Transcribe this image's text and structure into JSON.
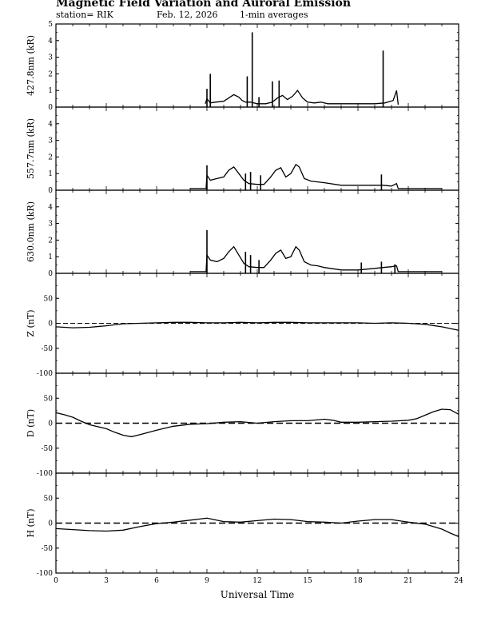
{
  "header": {
    "title": "Magnetic Field Variation and Auroral Emission",
    "station": "station= RIK",
    "date": "Feb. 12, 2026",
    "averaging": "1-min averages"
  },
  "chart_data": {
    "type": "line",
    "xlabel": "Universal Time",
    "xlim": [
      0,
      24
    ],
    "xticks": [
      "0",
      "3",
      "6",
      "9",
      "12",
      "15",
      "18",
      "21",
      "24"
    ],
    "panels": [
      {
        "ylabel": "427.8nm (kR)",
        "ylim": [
          0,
          5
        ],
        "yticks": [
          "0",
          "1",
          "2",
          "3",
          "4",
          "5"
        ],
        "series": [
          {
            "x": [
              8.9,
              9.0,
              9.2,
              9.5,
              10.0,
              10.3,
              10.6,
              10.9,
              11.1,
              11.3,
              11.6,
              12.0,
              12.5,
              12.9,
              13.2,
              13.5,
              13.8,
              14.1,
              14.4,
              14.7,
              15.0,
              15.4,
              15.8,
              16.2,
              17.0,
              18.0,
              19.0,
              19.6,
              20.1,
              20.3,
              20.4
            ],
            "y": [
              0.2,
              0.5,
              0.25,
              0.3,
              0.35,
              0.55,
              0.75,
              0.6,
              0.4,
              0.3,
              0.3,
              0.2,
              0.2,
              0.3,
              0.55,
              0.7,
              0.45,
              0.65,
              1.0,
              0.55,
              0.3,
              0.25,
              0.3,
              0.2,
              0.2,
              0.2,
              0.2,
              0.25,
              0.4,
              1.0,
              0.15
            ]
          }
        ],
        "spikes": [
          {
            "x": 9.0,
            "y": 1.1
          },
          {
            "x": 9.2,
            "y": 2.0
          },
          {
            "x": 11.4,
            "y": 1.85
          },
          {
            "x": 11.7,
            "y": 4.5
          },
          {
            "x": 12.1,
            "y": 0.6
          },
          {
            "x": 12.9,
            "y": 1.55
          },
          {
            "x": 13.3,
            "y": 1.6
          },
          {
            "x": 19.5,
            "y": 3.4
          }
        ]
      },
      {
        "ylabel": "557.7nm (kR)",
        "ylim": [
          0,
          5
        ],
        "yticks": [
          "0",
          "1",
          "2",
          "3",
          "4"
        ],
        "series": [
          {
            "x": [
              8.0,
              8.95,
              9.0,
              9.2,
              9.6,
              10.0,
              10.3,
              10.6,
              10.9,
              11.2,
              11.5,
              12.0,
              12.4,
              12.8,
              13.1,
              13.4,
              13.7,
              14.0,
              14.3,
              14.5,
              14.8,
              15.2,
              15.6,
              16.0,
              17.0,
              18.0,
              19.0,
              19.5,
              20.0,
              20.3,
              20.4,
              21.0,
              23.0
            ],
            "y": [
              0.1,
              0.1,
              0.9,
              0.6,
              0.7,
              0.8,
              1.2,
              1.4,
              1.0,
              0.6,
              0.4,
              0.35,
              0.35,
              0.8,
              1.2,
              1.35,
              0.8,
              1.0,
              1.55,
              1.4,
              0.7,
              0.55,
              0.5,
              0.45,
              0.3,
              0.3,
              0.3,
              0.3,
              0.25,
              0.4,
              0.1,
              0.1,
              0.1
            ]
          }
        ],
        "spikes": [
          {
            "x": 9.0,
            "y": 1.5
          },
          {
            "x": 11.3,
            "y": 1.0
          },
          {
            "x": 11.6,
            "y": 1.1
          },
          {
            "x": 12.2,
            "y": 0.9
          },
          {
            "x": 19.4,
            "y": 0.95
          }
        ]
      },
      {
        "ylabel": "630.0nm (kR)",
        "ylim": [
          0,
          5
        ],
        "yticks": [
          "0",
          "1",
          "2",
          "3",
          "4"
        ],
        "series": [
          {
            "x": [
              8.0,
              8.95,
              9.0,
              9.2,
              9.6,
              10.0,
              10.3,
              10.6,
              10.9,
              11.2,
              11.5,
              12.0,
              12.4,
              12.8,
              13.1,
              13.4,
              13.7,
              14.0,
              14.3,
              14.5,
              14.8,
              15.2,
              15.6,
              16.0,
              17.0,
              18.0,
              19.0,
              19.5,
              20.0,
              20.3,
              20.4,
              21.0,
              23.0
            ],
            "y": [
              0.1,
              0.1,
              1.1,
              0.8,
              0.7,
              0.9,
              1.3,
              1.6,
              1.1,
              0.6,
              0.4,
              0.35,
              0.35,
              0.8,
              1.2,
              1.4,
              0.9,
              1.0,
              1.6,
              1.4,
              0.7,
              0.5,
              0.45,
              0.35,
              0.2,
              0.2,
              0.3,
              0.35,
              0.4,
              0.45,
              0.1,
              0.1,
              0.1
            ]
          }
        ],
        "spikes": [
          {
            "x": 9.0,
            "y": 2.6
          },
          {
            "x": 11.3,
            "y": 1.3
          },
          {
            "x": 11.6,
            "y": 1.1
          },
          {
            "x": 12.1,
            "y": 0.8
          },
          {
            "x": 18.2,
            "y": 0.65
          },
          {
            "x": 19.4,
            "y": 0.7
          },
          {
            "x": 20.2,
            "y": 0.55
          }
        ]
      },
      {
        "ylabel": "Z (nT)",
        "ylim": [
          -100,
          100
        ],
        "yticks": [
          "-100",
          "-50",
          "0",
          "50"
        ],
        "baseline": 0,
        "series": [
          {
            "x": [
              0,
              1,
              2,
              3,
              4,
              5,
              6,
              7,
              8,
              9,
              10,
              11,
              12,
              13,
              14,
              15,
              16,
              17,
              18,
              19,
              20,
              21,
              22,
              23,
              24
            ],
            "y": [
              -7,
              -9,
              -8,
              -5,
              -1,
              0,
              1,
              2,
              2,
              1,
              1,
              2,
              1,
              2,
              2,
              1,
              1,
              1,
              1,
              0,
              1,
              0,
              -2,
              -7,
              -14
            ]
          }
        ]
      },
      {
        "ylabel": "D (nT)",
        "ylim": [
          -100,
          100
        ],
        "yticks": [
          "-100",
          "-50",
          "0",
          "50"
        ],
        "baseline": 0,
        "series": [
          {
            "x": [
              0,
              0.5,
              1,
              1.5,
              2,
              2.5,
              3,
              3.5,
              4,
              4.5,
              5,
              6,
              7,
              8,
              9,
              10,
              11,
              12,
              13,
              14,
              15,
              16,
              16.5,
              17,
              18,
              19,
              20,
              21,
              21.5,
              22,
              22.5,
              23,
              23.5,
              24
            ],
            "y": [
              21,
              17,
              12,
              4,
              -3,
              -7,
              -11,
              -18,
              -24,
              -27,
              -23,
              -14,
              -6,
              -2,
              -1,
              2,
              3,
              0,
              3,
              5,
              5,
              8,
              6,
              2,
              2,
              3,
              4,
              6,
              9,
              16,
              23,
              28,
              27,
              18
            ]
          }
        ]
      },
      {
        "ylabel": "H (nT)",
        "ylim": [
          -100,
          100
        ],
        "yticks": [
          "-100",
          "-50",
          "0",
          "50"
        ],
        "baseline": 0,
        "series": [
          {
            "x": [
              0,
              1,
              2,
              3,
              4,
              5,
              6,
              7,
              8,
              9,
              10,
              11,
              12,
              13,
              14,
              15,
              16,
              17,
              18,
              19,
              20,
              21,
              22,
              23,
              23.5,
              24
            ],
            "y": [
              -11,
              -13,
              -15,
              -16,
              -14,
              -7,
              -1,
              2,
              6,
              10,
              3,
              2,
              5,
              8,
              7,
              3,
              2,
              0,
              4,
              7,
              7,
              2,
              -2,
              -12,
              -20,
              -27
            ]
          }
        ]
      }
    ]
  }
}
